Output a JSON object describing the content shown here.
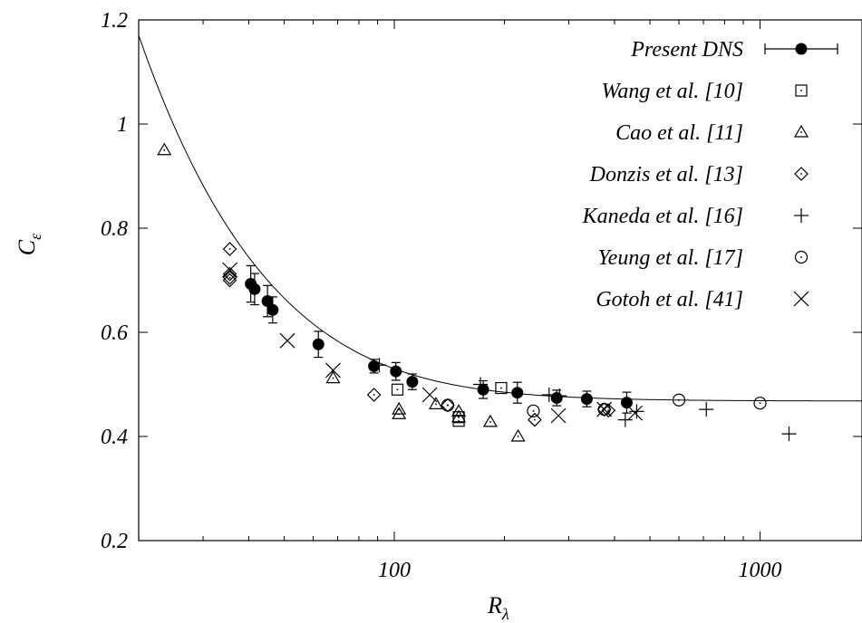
{
  "chart_data": {
    "type": "scatter",
    "title": "",
    "xlabel": "R",
    "xlabel_sub": "λ",
    "ylabel": "C",
    "ylabel_sub": "ε",
    "xscale": "log",
    "xlim": [
      20,
      1900
    ],
    "ylim": [
      0.2,
      1.2
    ],
    "grid": false,
    "legend_position": "top-right",
    "x_ticks": [
      {
        "value": 100,
        "label": "100"
      },
      {
        "value": 1000,
        "label": "1000"
      }
    ],
    "y_ticks": [
      {
        "value": 0.2,
        "label": "0.2"
      },
      {
        "value": 0.4,
        "label": "0.4"
      },
      {
        "value": 0.6,
        "label": "0.6"
      },
      {
        "value": 0.8,
        "label": "0.8"
      },
      {
        "value": 1.0,
        "label": "1"
      },
      {
        "value": 1.2,
        "label": "1.2"
      }
    ],
    "fit_curve": {
      "form": "A*(1 + sqrt(1 + (B/x)^2))",
      "A": 0.234,
      "B": 77.5
    },
    "series": [
      {
        "name": "Present DNS",
        "marker": "filled-circle-errorbars",
        "points": [
          {
            "x": 40.5,
            "y": 0.693,
            "err": 0.035
          },
          {
            "x": 41.5,
            "y": 0.683,
            "err": 0.03
          },
          {
            "x": 45,
            "y": 0.66,
            "err": 0.03
          },
          {
            "x": 46.5,
            "y": 0.643,
            "err": 0.025
          },
          {
            "x": 62,
            "y": 0.577,
            "err": 0.025
          },
          {
            "x": 88,
            "y": 0.535,
            "err": 0.013
          },
          {
            "x": 101,
            "y": 0.525,
            "err": 0.017
          },
          {
            "x": 112,
            "y": 0.505,
            "err": 0.015
          },
          {
            "x": 175,
            "y": 0.49,
            "err": 0.017
          },
          {
            "x": 217,
            "y": 0.484,
            "err": 0.02
          },
          {
            "x": 278,
            "y": 0.474,
            "err": 0.015
          },
          {
            "x": 336,
            "y": 0.472,
            "err": 0.015
          },
          {
            "x": 432,
            "y": 0.465,
            "err": 0.02
          }
        ]
      },
      {
        "name": "Wang et al. [10]",
        "marker": "square",
        "points": [
          {
            "x": 102,
            "y": 0.49
          },
          {
            "x": 150,
            "y": 0.43
          },
          {
            "x": 150,
            "y": 0.437
          },
          {
            "x": 196,
            "y": 0.493
          }
        ]
      },
      {
        "name": "Cao et al. [11]",
        "marker": "triangle",
        "points": [
          {
            "x": 23.5,
            "y": 0.95
          },
          {
            "x": 68,
            "y": 0.512
          },
          {
            "x": 103,
            "y": 0.452
          },
          {
            "x": 103,
            "y": 0.443
          },
          {
            "x": 130,
            "y": 0.462
          },
          {
            "x": 150,
            "y": 0.448
          },
          {
            "x": 150,
            "y": 0.437
          },
          {
            "x": 183,
            "y": 0.428
          },
          {
            "x": 218,
            "y": 0.4
          }
        ]
      },
      {
        "name": "Donzis et al. [13]",
        "marker": "diamond",
        "points": [
          {
            "x": 35.5,
            "y": 0.76
          },
          {
            "x": 35.5,
            "y": 0.712
          },
          {
            "x": 35.5,
            "y": 0.705
          },
          {
            "x": 35.5,
            "y": 0.7
          },
          {
            "x": 88,
            "y": 0.48
          },
          {
            "x": 140,
            "y": 0.46
          },
          {
            "x": 242,
            "y": 0.432
          },
          {
            "x": 375,
            "y": 0.452
          },
          {
            "x": 385,
            "y": 0.45
          }
        ]
      },
      {
        "name": "Kaneda et al. [16]",
        "marker": "plus",
        "points": [
          {
            "x": 91,
            "y": 0.537
          },
          {
            "x": 172,
            "y": 0.5
          },
          {
            "x": 265,
            "y": 0.48
          },
          {
            "x": 283,
            "y": 0.478
          },
          {
            "x": 428,
            "y": 0.432
          },
          {
            "x": 460,
            "y": 0.448
          },
          {
            "x": 713,
            "y": 0.452
          },
          {
            "x": 1200,
            "y": 0.405
          }
        ]
      },
      {
        "name": "Yeung et al. [17]",
        "marker": "circle",
        "points": [
          {
            "x": 140,
            "y": 0.46
          },
          {
            "x": 240,
            "y": 0.449
          },
          {
            "x": 375,
            "y": 0.452
          },
          {
            "x": 600,
            "y": 0.47
          },
          {
            "x": 1000,
            "y": 0.464
          }
        ]
      },
      {
        "name": "Gotoh et al. [41]",
        "marker": "cross",
        "points": [
          {
            "x": 35.5,
            "y": 0.72
          },
          {
            "x": 51,
            "y": 0.584
          },
          {
            "x": 68,
            "y": 0.527
          },
          {
            "x": 125,
            "y": 0.48
          },
          {
            "x": 281,
            "y": 0.44
          },
          {
            "x": 375,
            "y": 0.452
          },
          {
            "x": 455,
            "y": 0.445
          }
        ]
      }
    ]
  }
}
